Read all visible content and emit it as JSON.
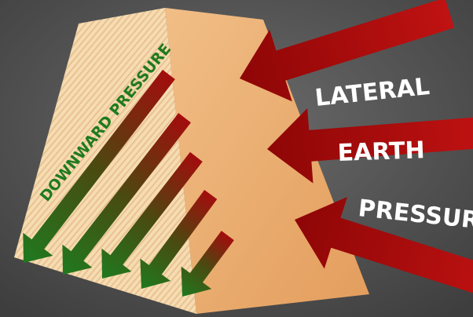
{
  "labels": {
    "downward": "DOWNWARD PRESSURE",
    "lateral": "LATERAL",
    "earth": "EARTH",
    "pressure": "PRESSURE"
  }
}
